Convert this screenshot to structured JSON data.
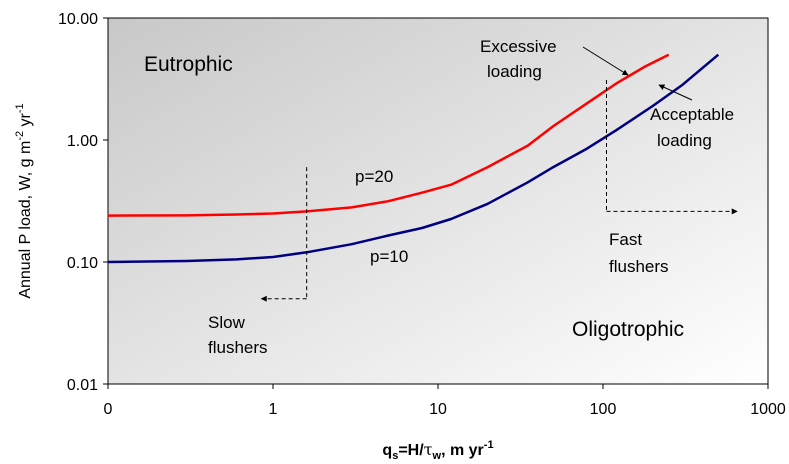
{
  "chart_data": {
    "type": "line",
    "x_scale": "log",
    "y_scale": "log",
    "xlim": [
      0.1,
      1000
    ],
    "ylim": [
      0.01,
      10
    ],
    "x_tick_labels": [
      "0",
      "1",
      "10",
      "100",
      "1000"
    ],
    "y_tick_labels": [
      "0.01",
      "0.10",
      "1.00",
      "10.00"
    ],
    "xlabel": {
      "part1": "q",
      "sub1": "s",
      "part2": "=H/",
      "tau": "τ",
      "sub2": "w",
      "part3": ", m yr",
      "sup": "-1"
    },
    "ylabel": {
      "part1": "Annual P load, W, g m",
      "sup1": "-2",
      "part2": " yr",
      "sup2": "-1"
    },
    "grid": false,
    "series": [
      {
        "name": "p=20",
        "color": "#ff0000",
        "x": [
          0.1,
          0.3,
          0.6,
          1,
          1.6,
          3,
          5,
          8,
          12,
          20,
          35,
          50,
          80,
          120,
          180,
          250
        ],
        "y": [
          0.24,
          0.241,
          0.245,
          0.25,
          0.26,
          0.28,
          0.315,
          0.37,
          0.43,
          0.6,
          0.9,
          1.3,
          2.0,
          2.9,
          4.0,
          5.0
        ]
      },
      {
        "name": "p=10",
        "color": "#000080",
        "x": [
          0.1,
          0.3,
          0.6,
          1,
          1.6,
          3,
          5,
          8,
          12,
          20,
          35,
          50,
          80,
          120,
          200,
          300,
          500
        ],
        "y": [
          0.1,
          0.102,
          0.105,
          0.11,
          0.12,
          0.14,
          0.165,
          0.19,
          0.225,
          0.3,
          0.45,
          0.6,
          0.85,
          1.2,
          1.9,
          2.8,
          5.0
        ]
      }
    ],
    "boundaries": [
      {
        "name": "slow-flushers",
        "x": 1.6,
        "y_from": 0.6,
        "y_to": 0.05,
        "arrow_to_x": 0.85
      },
      {
        "name": "fast-flushers",
        "x": 105,
        "y_from": 3.1,
        "y_to": 0.26,
        "arrow_to_x": 650
      }
    ],
    "annotations": {
      "eutrophic": "Eutrophic",
      "oligotrophic": "Oligotrophic",
      "p20": "p=20",
      "p10": "p=10",
      "excessive_1": "Excessive",
      "excessive_2": "loading",
      "acceptable_1": "Acceptable",
      "acceptable_2": "loading",
      "slow_1": "Slow",
      "slow_2": "flushers",
      "fast_1": "Fast",
      "fast_2": "flushers"
    },
    "colors": {
      "plot_bg_top_left": "#c8c8c8",
      "plot_bg_bottom_right": "#ffffff",
      "p20": "#ff0000",
      "p10": "#000080"
    }
  }
}
